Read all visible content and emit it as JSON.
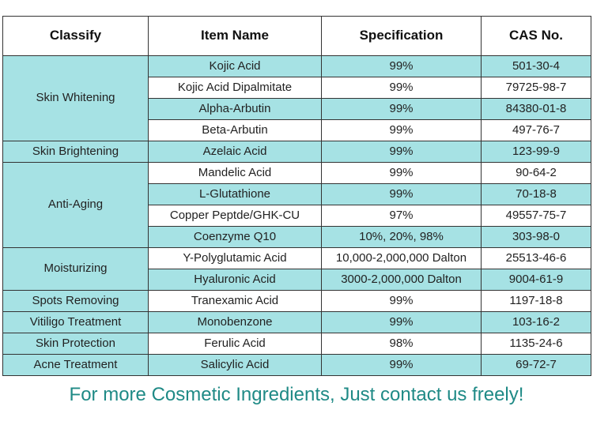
{
  "headers": {
    "classify": "Classify",
    "item_name": "Item Name",
    "specification": "Specification",
    "cas_no": "CAS No."
  },
  "groups": [
    {
      "classify": "Skin Whitening",
      "rows": [
        {
          "name": "Kojic Acid",
          "spec": "99%",
          "cas": "501-30-4"
        },
        {
          "name": "Kojic Acid Dipalmitate",
          "spec": "99%",
          "cas": "79725-98-7"
        },
        {
          "name": "Alpha-Arbutin",
          "spec": "99%",
          "cas": "84380-01-8"
        },
        {
          "name": "Beta-Arbutin",
          "spec": "99%",
          "cas": "497-76-7"
        }
      ]
    },
    {
      "classify": "Skin Brightening",
      "rows": [
        {
          "name": "Azelaic Acid",
          "spec": "99%",
          "cas": "123-99-9"
        }
      ]
    },
    {
      "classify": "Anti-Aging",
      "rows": [
        {
          "name": "Mandelic Acid",
          "spec": "99%",
          "cas": "90-64-2"
        },
        {
          "name": "L-Glutathione",
          "spec": "99%",
          "cas": "70-18-8"
        },
        {
          "name": "Copper Peptde/GHK-CU",
          "spec": "97%",
          "cas": "49557-75-7"
        },
        {
          "name": "Coenzyme Q10",
          "spec": "10%, 20%, 98%",
          "cas": "303-98-0"
        }
      ]
    },
    {
      "classify": "Moisturizing",
      "rows": [
        {
          "name": "Y-Polyglutamic Acid",
          "spec": "10,000-2,000,000 Dalton",
          "cas": "25513-46-6"
        },
        {
          "name": "Hyaluronic Acid",
          "spec": "3000-2,000,000 Dalton",
          "cas": "9004-61-9"
        }
      ]
    },
    {
      "classify": "Spots Removing",
      "rows": [
        {
          "name": "Tranexamic Acid",
          "spec": "99%",
          "cas": "1197-18-8"
        }
      ]
    },
    {
      "classify": "Vitiligo Treatment",
      "rows": [
        {
          "name": "Monobenzone",
          "spec": "99%",
          "cas": "103-16-2"
        }
      ]
    },
    {
      "classify": "Skin Protection",
      "rows": [
        {
          "name": "Ferulic Acid",
          "spec": "98%",
          "cas": "1135-24-6"
        }
      ]
    },
    {
      "classify": "Acne Treatment",
      "rows": [
        {
          "name": "Salicylic Acid",
          "spec": "99%",
          "cas": "69-72-7"
        }
      ]
    }
  ],
  "footer": "For more Cosmetic Ingredients, Just contact us freely!",
  "colors": {
    "row_teal": "#a6e2e4",
    "row_white": "#ffffff",
    "footer_text": "#1f8a86"
  }
}
